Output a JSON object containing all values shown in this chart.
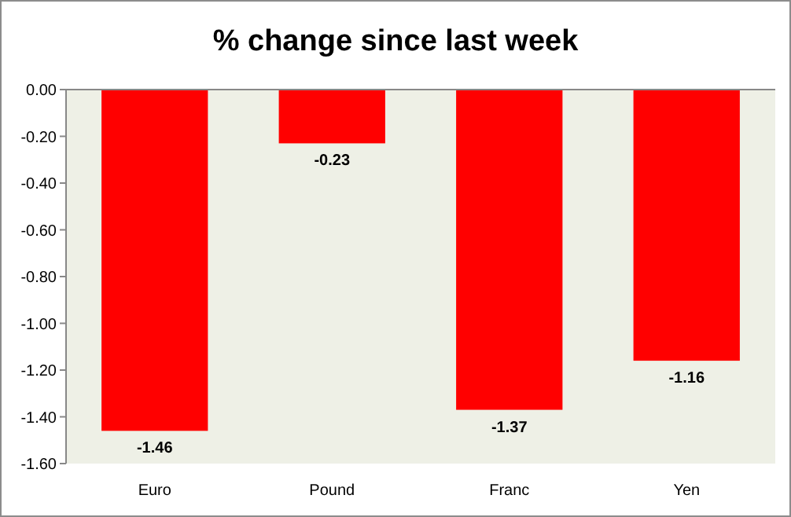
{
  "chart_data": {
    "type": "bar",
    "title": "% change since last week",
    "categories": [
      "Euro",
      "Pound",
      "Franc",
      "Yen"
    ],
    "values": [
      -1.46,
      -0.23,
      -1.37,
      -1.16
    ],
    "color": "#ff0000",
    "value_labels": [
      "-1.46",
      "-0.23",
      "-1.37",
      "-1.16"
    ],
    "ylim": [
      -1.6,
      0
    ],
    "yticks": [
      {
        "value": 0,
        "label": "0.00"
      },
      {
        "value": -0.2,
        "label": "-0.20"
      },
      {
        "value": -0.4,
        "label": "-0.40"
      },
      {
        "value": -0.6,
        "label": "-0.60"
      },
      {
        "value": -0.8,
        "label": "-0.80"
      },
      {
        "value": -1,
        "label": "-1.00"
      },
      {
        "value": -1.2,
        "label": "-1.20"
      },
      {
        "value": -1.4,
        "label": "-1.40"
      },
      {
        "value": -1.6,
        "label": "-1.60"
      }
    ],
    "grid": false
  }
}
